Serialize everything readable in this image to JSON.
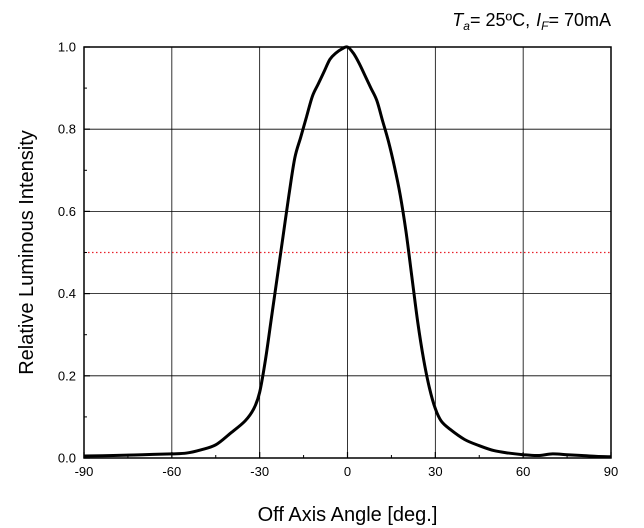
{
  "chart_data": {
    "type": "line",
    "title": "",
    "annotation": {
      "ta_symbol": "T",
      "ta_sub": "a",
      "ta_value": "= 25ºC,",
      "if_symbol": "I",
      "if_sub": "F",
      "if_value": "= 70mA"
    },
    "xlabel": "Off Axis Angle [deg.]",
    "ylabel": "Relative Luminous Intensity",
    "xlim": [
      -90,
      90
    ],
    "ylim": [
      0,
      1.0
    ],
    "xticks": [
      -90,
      -60,
      -30,
      0,
      30,
      60,
      90
    ],
    "yticks": [
      0.0,
      0.2,
      0.4,
      0.6,
      0.8,
      1.0
    ],
    "xtick_labels": [
      "-90",
      "-60",
      "-30",
      "0",
      "30",
      "60",
      "90"
    ],
    "ytick_labels": [
      "0.0",
      "0.2",
      "0.4",
      "0.6",
      "0.8",
      "1.0"
    ],
    "grid": true,
    "reference_line": {
      "y": 0.5,
      "style": "dotted",
      "color": "#e8202a"
    },
    "series": [
      {
        "color": "#000000",
        "x": [
          -90,
          -80,
          -70,
          -60,
          -55,
          -50,
          -45,
          -40,
          -35,
          -32,
          -30,
          -28,
          -26,
          -24,
          -22,
          -20,
          -18,
          -16,
          -14,
          -12,
          -10,
          -8,
          -6,
          -4,
          -2,
          0,
          2,
          4,
          6,
          8,
          10,
          12,
          14,
          16,
          18,
          20,
          22,
          24,
          26,
          28,
          30,
          32,
          35,
          40,
          45,
          50,
          55,
          60,
          65,
          70,
          75,
          80,
          85,
          90
        ],
        "y": [
          0.005,
          0.006,
          0.008,
          0.01,
          0.012,
          0.02,
          0.032,
          0.06,
          0.09,
          0.12,
          0.16,
          0.24,
          0.34,
          0.44,
          0.54,
          0.64,
          0.73,
          0.78,
          0.83,
          0.88,
          0.91,
          0.94,
          0.97,
          0.985,
          0.995,
          1.0,
          0.985,
          0.96,
          0.93,
          0.9,
          0.87,
          0.82,
          0.77,
          0.71,
          0.64,
          0.55,
          0.44,
          0.33,
          0.24,
          0.17,
          0.12,
          0.09,
          0.07,
          0.045,
          0.03,
          0.018,
          0.012,
          0.008,
          0.006,
          0.01,
          0.008,
          0.006,
          0.004,
          0.003
        ]
      }
    ]
  }
}
